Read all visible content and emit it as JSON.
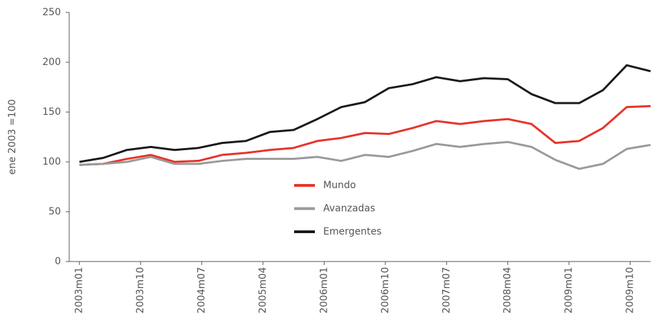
{
  "chart_data": {
    "type": "line",
    "y_label": "ene 2003 =100",
    "x": [
      0,
      3.5,
      7,
      10.5,
      14,
      17.5,
      21,
      24.5,
      28,
      31.5,
      35,
      38.5,
      42,
      45.5,
      49,
      52.5,
      56,
      59.5,
      63,
      66.5,
      70,
      73.5,
      77,
      80.5,
      84
    ],
    "xlim": [
      -1.5,
      84
    ],
    "xticks": [
      {
        "value": 0,
        "label": "2003m01"
      },
      {
        "value": 9,
        "label": "2003m10"
      },
      {
        "value": 18,
        "label": "2004m07"
      },
      {
        "value": 27,
        "label": "2005m04"
      },
      {
        "value": 36,
        "label": "2006m01"
      },
      {
        "value": 45,
        "label": "2006m10"
      },
      {
        "value": 54,
        "label": "2007m07"
      },
      {
        "value": 63,
        "label": "2008m04"
      },
      {
        "value": 72,
        "label": "2009m01"
      },
      {
        "value": 81,
        "label": "2009m10"
      }
    ],
    "ylim": [
      0,
      250
    ],
    "yticks": [
      0,
      50,
      100,
      150,
      200,
      250
    ],
    "series": [
      {
        "name": "Mundo",
        "color": "#e8332a",
        "values": [
          97,
          98,
          103,
          107,
          100,
          101,
          107,
          109,
          112,
          114,
          121,
          124,
          129,
          128,
          134,
          141,
          138,
          141,
          143,
          138,
          119,
          121,
          134,
          155,
          156
        ]
      },
      {
        "name": "Avanzadas",
        "color": "#9a9a9a",
        "values": [
          97,
          98,
          100,
          105,
          98,
          98,
          101,
          103,
          103,
          103,
          105,
          101,
          107,
          105,
          111,
          118,
          115,
          118,
          120,
          115,
          102,
          93,
          98,
          113,
          117
        ]
      },
      {
        "name": "Emergentes",
        "color": "#1a1a1a",
        "values": [
          100,
          104,
          112,
          115,
          112,
          114,
          119,
          121,
          130,
          132,
          143,
          155,
          160,
          174,
          178,
          185,
          181,
          184,
          183,
          168,
          159,
          159,
          172,
          197,
          191
        ]
      }
    ]
  }
}
